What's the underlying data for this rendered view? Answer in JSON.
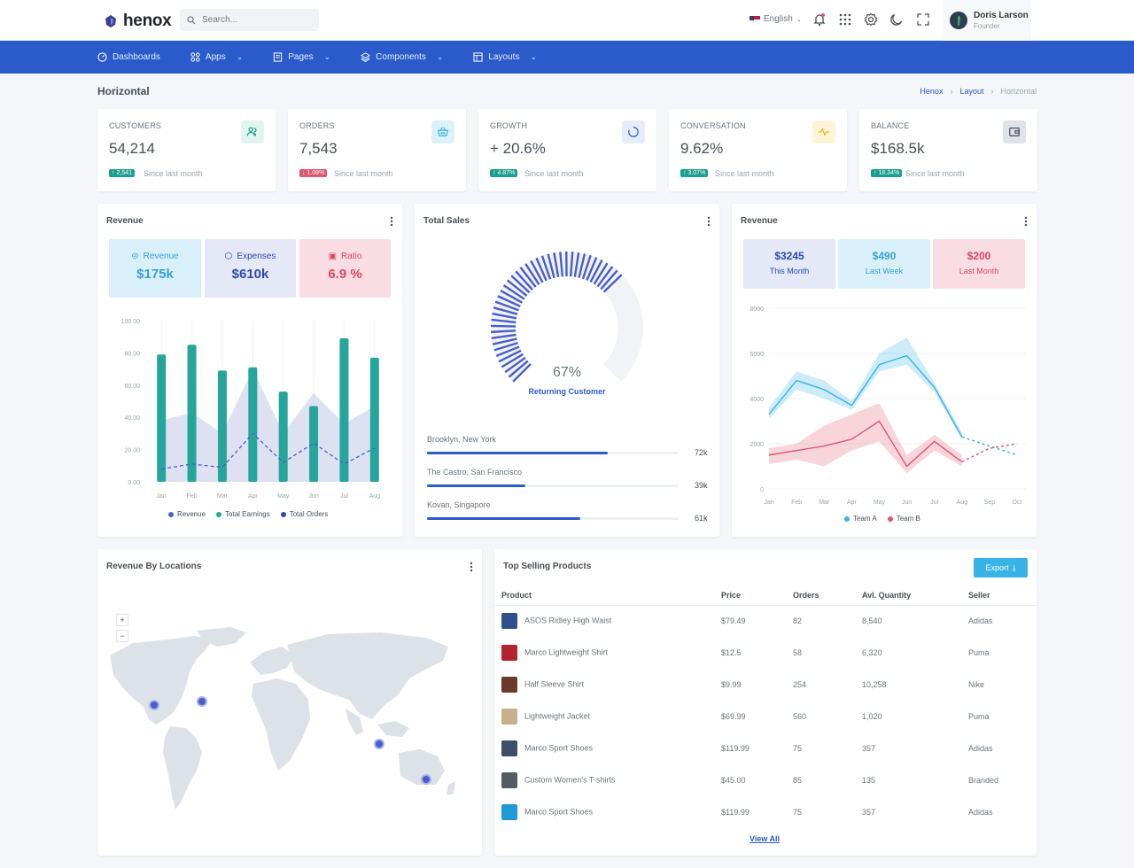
{
  "app": {
    "name": "henox"
  },
  "search": {
    "placeholder": "Search..."
  },
  "topbar": {
    "language": "English",
    "user_name": "Doris Larson",
    "user_role": "Founder"
  },
  "nav": [
    {
      "label": "Dashboards"
    },
    {
      "label": "Apps"
    },
    {
      "label": "Pages"
    },
    {
      "label": "Components"
    },
    {
      "label": "Layouts"
    }
  ],
  "page": {
    "title": "Horizontal",
    "breadcrumb": [
      "Henox",
      "Layout",
      "Horizontal"
    ]
  },
  "stats": [
    {
      "label": "CUSTOMERS",
      "value": "54,214",
      "badge": "↑ 2,541",
      "badge_color": "#1a9e8f",
      "since": "Since last month",
      "icon": "users-icon",
      "icon_bg": "#dff5ee",
      "icon_color": "#1a9e8f"
    },
    {
      "label": "ORDERS",
      "value": "7,543",
      "badge": "↓ 1.08%",
      "badge_color": "#e0566f",
      "since": "Since last month",
      "icon": "basket-icon",
      "icon_bg": "#dbf2fb",
      "icon_color": "#37b3e6"
    },
    {
      "label": "GROWTH",
      "value": "+ 20.6%",
      "badge": "↑ 4.87%",
      "badge_color": "#1a9e8f",
      "since": "Since last month",
      "icon": "progress-icon",
      "icon_bg": "#e6ecfa",
      "icon_color": "#2b5bcb"
    },
    {
      "label": "CONVERSATION",
      "value": "9.62%",
      "badge": "↑ 3.07%",
      "badge_color": "#1a9e8f",
      "since": "Since last month",
      "icon": "pulse-icon",
      "icon_bg": "#fdf4d8",
      "icon_color": "#f0b41a"
    },
    {
      "label": "BALANCE",
      "value": "$168.5k",
      "badge": "↑ 18.34%",
      "badge_color": "#1a9e8f",
      "since": "Since last month",
      "icon": "wallet-icon",
      "icon_bg": "#dfe2e6",
      "icon_color": "#495057"
    }
  ],
  "revenue_card": {
    "title": "Revenue",
    "boxes": [
      {
        "label": "Revenue",
        "value": "$175k"
      },
      {
        "label": "Expenses",
        "value": "$610k"
      },
      {
        "label": "Ratio",
        "value": "6.9 %"
      }
    ],
    "legend": [
      "Revenue",
      "Total Earnings",
      "Total Orders"
    ]
  },
  "total_sales": {
    "title": "Total Sales",
    "percent_label": "67%",
    "caption": "Returning Customer",
    "locations": [
      {
        "name": "Brooklyn, New York",
        "value": "72k",
        "fill": 0.72
      },
      {
        "name": "The Castro, San Francisco",
        "value": "39k",
        "fill": 0.39
      },
      {
        "name": "Kovan, Singapore",
        "value": "61k",
        "fill": 0.61
      }
    ]
  },
  "revenue_right": {
    "title": "Revenue",
    "boxes": [
      {
        "value": "$3245",
        "label": "This Month"
      },
      {
        "value": "$490",
        "label": "Last Week"
      },
      {
        "value": "$200",
        "label": "Last Month"
      }
    ],
    "legend": [
      "Team A",
      "Team B"
    ]
  },
  "locations_card": {
    "title": "Revenue By Locations",
    "zoom_in": "+",
    "zoom_out": "−"
  },
  "products": {
    "title": "Top Selling Products",
    "export_label": "Export",
    "columns": [
      "Product",
      "Price",
      "Orders",
      "Avl. Quantity",
      "Seller"
    ],
    "rows": [
      {
        "name": "ASOS Ridley High Waist",
        "price": "$79.49",
        "orders": "82",
        "qty": "8,540",
        "seller": "Adidas",
        "img": "#2f4f8f"
      },
      {
        "name": "Marco Lightweight Shirt",
        "price": "$12.5",
        "orders": "58",
        "qty": "6,320",
        "seller": "Puma",
        "img": "#b0232f"
      },
      {
        "name": "Half Sleeve Shirt",
        "price": "$9.99",
        "orders": "254",
        "qty": "10,258",
        "seller": "Nike",
        "img": "#6b3a2a"
      },
      {
        "name": "Lightweight Jacket",
        "price": "$69.99",
        "orders": "560",
        "qty": "1,020",
        "seller": "Puma",
        "img": "#c9b08a"
      },
      {
        "name": "Marco Sport Shoes",
        "price": "$119.99",
        "orders": "75",
        "qty": "357",
        "seller": "Adidas",
        "img": "#3d4f6a"
      },
      {
        "name": "Custom Women's T-shirts",
        "price": "$45.00",
        "orders": "85",
        "qty": "135",
        "seller": "Branded",
        "img": "#555b63"
      },
      {
        "name": "Marco Sport Shoes",
        "price": "$119.99",
        "orders": "75",
        "qty": "357",
        "seller": "Adidas",
        "img": "#1f9ad6"
      }
    ],
    "view_all": "View All"
  },
  "chart_data": [
    {
      "type": "bar",
      "title": "",
      "categories": [
        "Jan",
        "Feb",
        "Mar",
        "Apr",
        "May",
        "Jun",
        "Jul",
        "Aug"
      ],
      "y_ticks": [
        "100.00",
        "80.00",
        "60.00",
        "40.00",
        "20.00",
        "0.00"
      ],
      "ylim": [
        0,
        100
      ],
      "series": [
        {
          "name": "Revenue",
          "kind": "line",
          "color": "#4a5ecb",
          "values": [
            8,
            11,
            9,
            30,
            12,
            24,
            11,
            21
          ]
        },
        {
          "name": "Total Earnings",
          "kind": "bar",
          "color": "#26a69a",
          "values": [
            79,
            85,
            69,
            71,
            56,
            47,
            89,
            77
          ]
        },
        {
          "name": "Total Orders",
          "kind": "area",
          "color": "#c7cdea",
          "values": [
            38,
            43,
            30,
            70,
            30,
            55,
            36,
            47
          ]
        }
      ],
      "legend": "bottom"
    },
    {
      "type": "pie",
      "title": "Total Sales",
      "values": [
        67
      ],
      "label": "Returning Customer"
    },
    {
      "type": "line",
      "title": "",
      "categories": [
        "Jan",
        "Feb",
        "Mar",
        "Apr",
        "May",
        "Jun",
        "Jul",
        "Aug",
        "Sep",
        "Oct"
      ],
      "y_ticks": [
        "8000",
        "6000",
        "4000",
        "2000",
        "0"
      ],
      "ylim": [
        0,
        8000
      ],
      "series": [
        {
          "name": "Team A",
          "color": "#37b3e6",
          "values": [
            3300,
            4800,
            4400,
            3700,
            5500,
            5900,
            4500,
            2300,
            1900,
            1500
          ],
          "range_low": [
            3100,
            4400,
            4000,
            3500,
            5200,
            5500,
            4300,
            2200
          ],
          "range_high": [
            3600,
            5200,
            4800,
            3900,
            6000,
            6700,
            4700,
            2500
          ]
        },
        {
          "name": "Team B",
          "color": "#e0566f",
          "values": [
            1500,
            1700,
            1900,
            2200,
            3000,
            1000,
            2100,
            1200,
            1800,
            2000
          ],
          "range_low": [
            1100,
            1300,
            1000,
            1700,
            2100,
            700,
            1700,
            1000
          ],
          "range_high": [
            1800,
            2000,
            2800,
            3300,
            3800,
            1500,
            2400,
            1500
          ]
        }
      ],
      "legend": "bottom"
    }
  ]
}
